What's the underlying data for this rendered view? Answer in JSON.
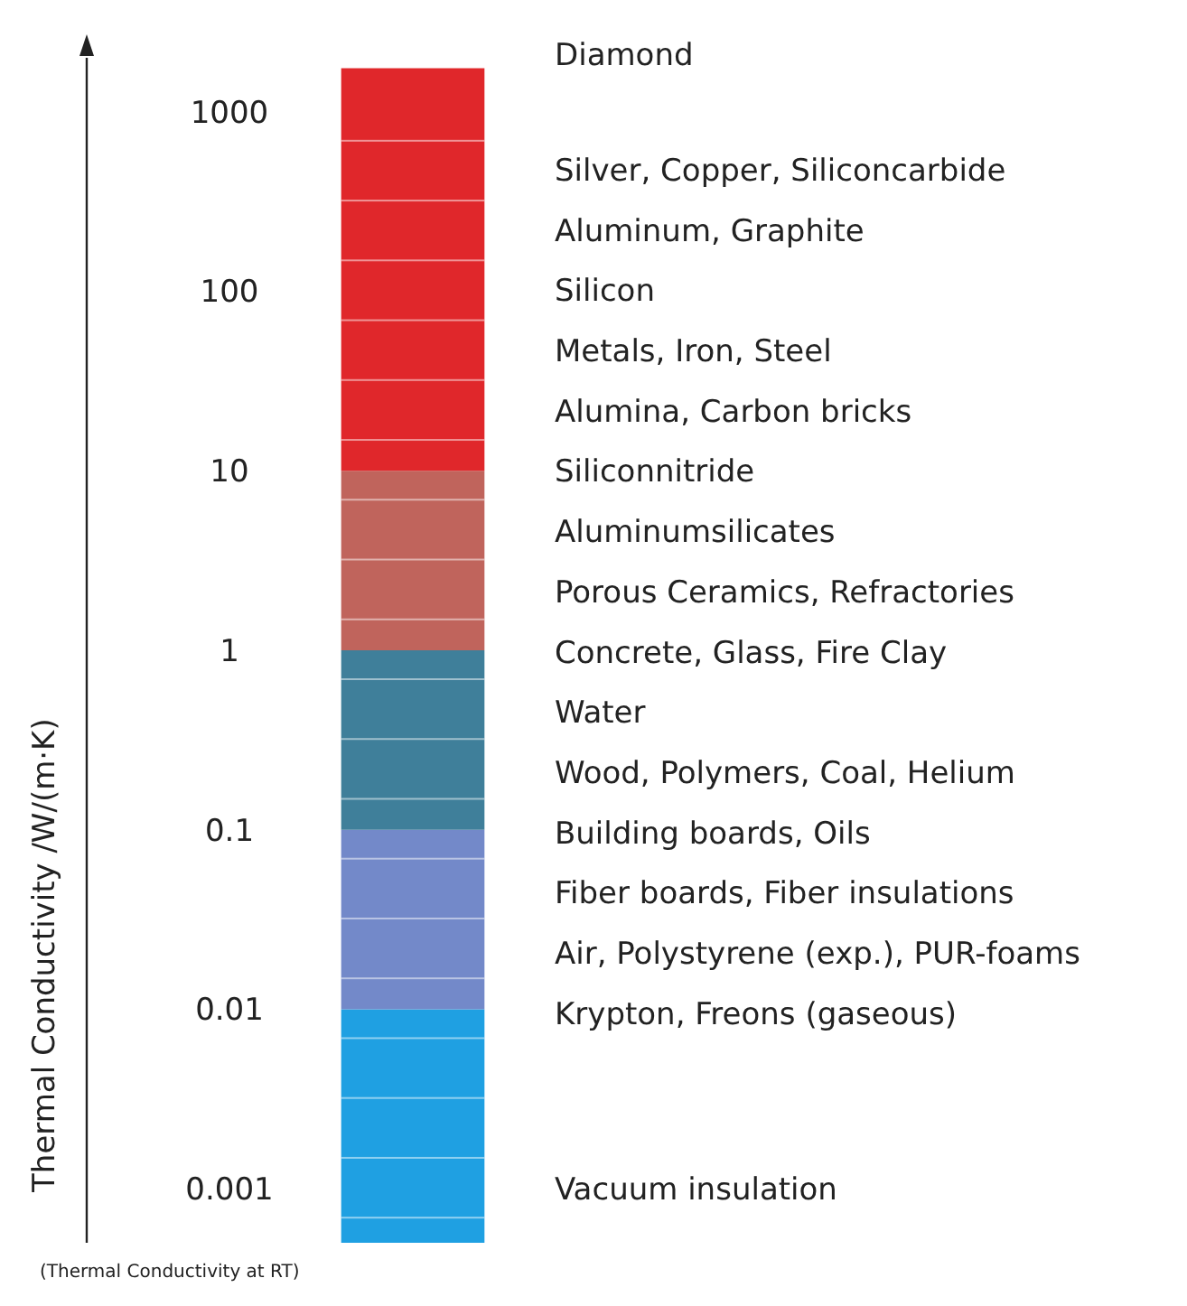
{
  "chart_data": {
    "type": "bar",
    "stacked": true,
    "categories": [
      null
    ],
    "ylabel": "Thermal Conductivity   /W/(m·K)",
    "log": "y",
    "ylim": [
      0.0005,
      2000
    ],
    "yticks": [
      0.001,
      0.01,
      0.1,
      1,
      10,
      100,
      1000
    ],
    "series": [
      {
        "color": "#1fa0e2",
        "values": [
          0.01
        ]
      },
      {
        "color": "#7389c9",
        "values": [
          0.09
        ]
      },
      {
        "color": "#3f7f9a",
        "values": [
          0.9
        ]
      },
      {
        "color": "#c0645c",
        "values": [
          9
        ]
      },
      {
        "color": "#e0272b",
        "values": [
          1740
        ]
      }
    ],
    "annotations": [
      "Diamond",
      "Silver, Copper, Siliconcarbide",
      "Aluminum, Graphite",
      "Silicon",
      "Metals, Iron, Steel",
      "Alumina, Carbon bricks",
      "Siliconnitride",
      "Aluminumsilicates",
      "Porous Ceramics, Refractories",
      "Concrete, Glass, Fire Clay",
      "Water",
      "Wood, Polymers, Coal, Helium",
      "Building boards, Oils",
      "Fiber boards, Fiber insulations",
      "Air, Polystyrene (exp.), PUR-foams",
      "Krypton, Freons (gaseous)",
      "Vacuum insulation",
      "(Thermal Conductivity at RT)"
    ]
  }
}
